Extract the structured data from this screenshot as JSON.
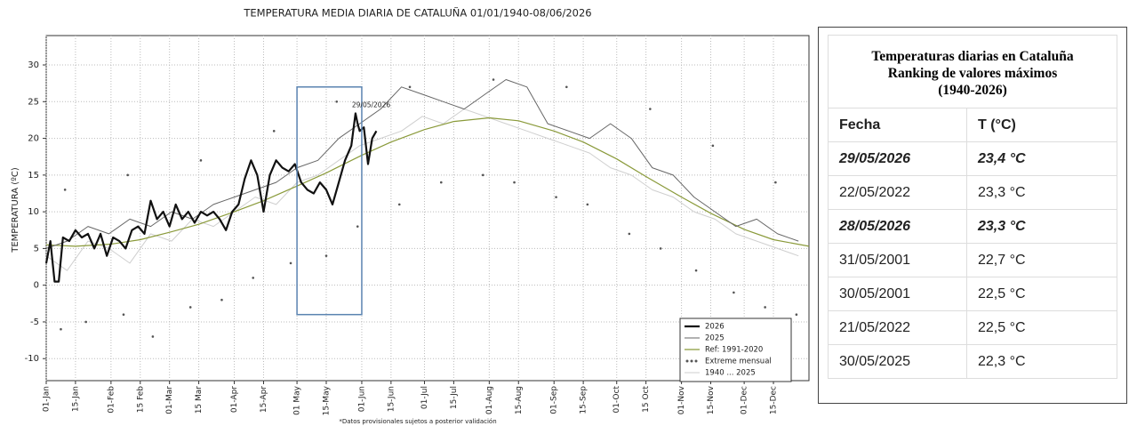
{
  "chart_data": {
    "type": "line",
    "title": "TEMPERATURA MEDIA DIARIA DE CATALUÑA 01/01/1940-08/06/2026",
    "y_label": "TEMPERATURA (ºC)",
    "footnote": "*Datos provisionales sujetos a posterior validación",
    "xlim": [
      1,
      366
    ],
    "ylim": [
      -13,
      34
    ],
    "yticks": [
      -10,
      -5,
      0,
      5,
      10,
      15,
      20,
      25,
      30
    ],
    "xticks": [
      {
        "value": 1,
        "label": "01-Jan"
      },
      {
        "value": 15,
        "label": "15-Jan"
      },
      {
        "value": 32,
        "label": "01-Feb"
      },
      {
        "value": 46,
        "label": "15 Feb"
      },
      {
        "value": 60,
        "label": "01-Mar"
      },
      {
        "value": 74,
        "label": "15 Mar"
      },
      {
        "value": 91,
        "label": "01-Apr"
      },
      {
        "value": 105,
        "label": "15-Apr"
      },
      {
        "value": 121,
        "label": "01 May"
      },
      {
        "value": 135,
        "label": "15-May"
      },
      {
        "value": 152,
        "label": "01-Jun"
      },
      {
        "value": 166,
        "label": "15-Jun"
      },
      {
        "value": 182,
        "label": "01-Jul"
      },
      {
        "value": 196,
        "label": "15-Jul"
      },
      {
        "value": 213,
        "label": "01-Aug"
      },
      {
        "value": 227,
        "label": "15-Aug"
      },
      {
        "value": 244,
        "label": "01-Sep"
      },
      {
        "value": 258,
        "label": "15-Sep"
      },
      {
        "value": 274,
        "label": "01-Oct"
      },
      {
        "value": 288,
        "label": "15 Oct"
      },
      {
        "value": 305,
        "label": "01-Nov"
      },
      {
        "value": 319,
        "label": "15-Nov"
      },
      {
        "value": 335,
        "label": "01-Dec"
      },
      {
        "value": 349,
        "label": "15-Dec"
      }
    ],
    "grid": true,
    "legend": "lower right",
    "series": [
      {
        "name": "1940 ... 2025",
        "color": "#cfcfcf",
        "style": "faint",
        "x": [
          1,
          11,
          21,
          31,
          41,
          51,
          61,
          71,
          81,
          91,
          101,
          111,
          121,
          131,
          141,
          151,
          161,
          171,
          181,
          191,
          201,
          211,
          221,
          231,
          241,
          251,
          261,
          271,
          281,
          291,
          301,
          311,
          321,
          331,
          341,
          351,
          361
        ],
        "values": [
          4,
          2,
          6,
          5,
          3,
          7,
          6,
          9,
          8,
          10,
          12,
          11,
          14,
          15,
          17,
          19,
          20,
          21,
          23,
          22,
          24,
          23,
          22,
          21,
          20,
          19,
          18,
          16,
          15,
          13,
          12,
          10,
          9,
          7,
          6,
          5,
          4
        ]
      },
      {
        "name": "Extreme mensual",
        "color": "#555555",
        "style": "dots",
        "x": [
          8,
          20,
          38,
          52,
          70,
          85,
          100,
          118,
          135,
          150,
          170,
          190,
          210,
          225,
          245,
          260,
          280,
          295,
          312,
          330,
          345,
          360,
          10,
          40,
          75,
          110,
          140,
          175,
          215,
          250,
          290,
          320,
          350
        ],
        "values": [
          -6,
          -5,
          -4,
          -7,
          -3,
          -2,
          1,
          3,
          4,
          8,
          11,
          14,
          15,
          14,
          12,
          11,
          7,
          5,
          2,
          -1,
          -3,
          -4,
          13,
          15,
          17,
          21,
          25,
          27,
          28,
          27,
          24,
          19,
          14
        ]
      },
      {
        "name": "Ref: 1991-2020",
        "color": "#8a9a3a",
        "style": "ref",
        "x": [
          1,
          15,
          32,
          46,
          60,
          74,
          91,
          105,
          121,
          135,
          152,
          166,
          182,
          196,
          213,
          227,
          244,
          258,
          274,
          288,
          305,
          319,
          335,
          349,
          366
        ],
        "values": [
          5.5,
          5.3,
          5.6,
          6.2,
          7.2,
          8.3,
          10,
          11.5,
          13.5,
          15.3,
          17.7,
          19.5,
          21.2,
          22.3,
          22.8,
          22.4,
          21,
          19.5,
          17.2,
          14.8,
          12,
          9.8,
          7.6,
          6.2,
          5.3
        ]
      },
      {
        "name": "2025",
        "color": "#666666",
        "style": "thin",
        "x": [
          1,
          11,
          21,
          31,
          41,
          51,
          61,
          71,
          81,
          91,
          101,
          111,
          121,
          131,
          141,
          151,
          161,
          171,
          181,
          191,
          201,
          211,
          221,
          231,
          241,
          251,
          261,
          271,
          281,
          291,
          301,
          311,
          321,
          331,
          341,
          351,
          361
        ],
        "values": [
          5,
          6,
          8,
          7,
          9,
          8,
          10,
          9,
          11,
          12,
          13,
          14,
          16,
          17,
          20,
          22,
          24,
          27,
          26,
          25,
          24,
          26,
          28,
          27,
          22,
          21,
          20,
          22,
          20,
          16,
          15,
          12,
          10,
          8,
          9,
          7,
          6
        ]
      },
      {
        "name": "2026",
        "color": "#111111",
        "style": "heavy",
        "x": [
          1,
          3,
          5,
          7,
          9,
          12,
          15,
          18,
          21,
          24,
          27,
          30,
          33,
          36,
          39,
          42,
          45,
          48,
          51,
          54,
          57,
          60,
          63,
          66,
          69,
          72,
          75,
          78,
          81,
          84,
          87,
          90,
          93,
          96,
          99,
          102,
          105,
          108,
          111,
          114,
          117,
          120,
          123,
          126,
          129,
          132,
          135,
          138,
          141,
          144,
          147,
          149,
          150,
          151,
          153,
          155,
          157,
          159
        ],
        "values": [
          3,
          6,
          0.5,
          0.5,
          6.5,
          6,
          7.5,
          6.5,
          7,
          5,
          7,
          4,
          6.5,
          6,
          5,
          7.5,
          8,
          7,
          11.5,
          9,
          10,
          8,
          11,
          9,
          10,
          8.5,
          10,
          9.5,
          10,
          9,
          7.5,
          10,
          11,
          14.5,
          17,
          15,
          10,
          15,
          17,
          16,
          15.5,
          16.5,
          14,
          13,
          12.5,
          14,
          13,
          11,
          14,
          17,
          19,
          23.4,
          22,
          21,
          21.5,
          16.5,
          20,
          21
        ]
      }
    ],
    "highlight": {
      "x": [
        121,
        152
      ],
      "y": [
        -4,
        27
      ],
      "color": "#5b84b1"
    },
    "annotation": {
      "text": "29/05/2026",
      "x": 149,
      "y": 23.4
    }
  },
  "table": {
    "title": [
      "Temperaturas  diarias en Cataluña",
      "Ranking de valores máximos",
      "(1940-2026)"
    ],
    "columns": [
      "Fecha",
      "T (°C)"
    ],
    "rows": [
      [
        "29/05/2026",
        "23,4 °C"
      ],
      [
        "22/05/2022",
        "23,3 °C"
      ],
      [
        "28/05/2026",
        "23,3 °C"
      ],
      [
        "31/05/2001",
        "22,7 °C"
      ],
      [
        "30/05/2001",
        "22,5 °C"
      ],
      [
        "21/05/2022",
        "22,5 °C"
      ],
      [
        "30/05/2025",
        "22,3 °C"
      ]
    ],
    "emphasized": [
      true,
      false,
      true,
      false,
      false,
      false,
      false
    ]
  }
}
